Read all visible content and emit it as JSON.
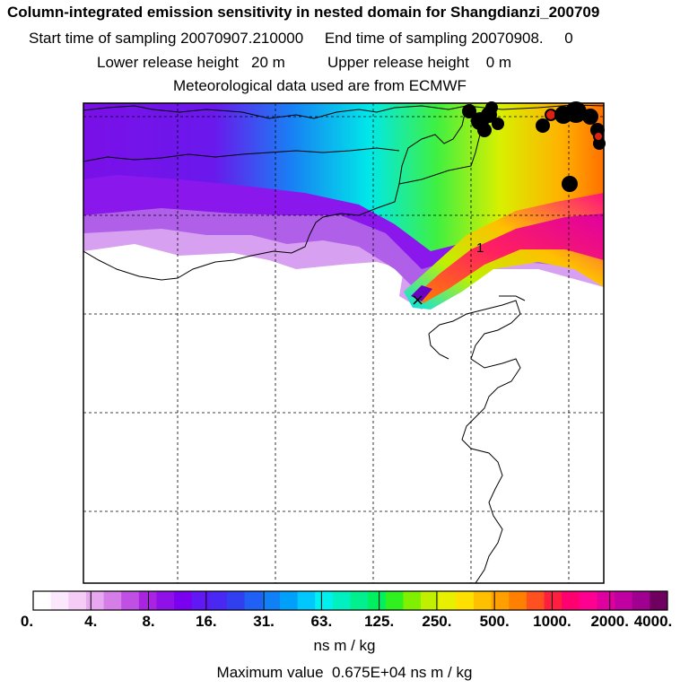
{
  "header": {
    "title": "Column-integrated emission sensitivity in nested domain for Shangdianzi_200709",
    "sampling": "Start time of sampling 20070907.210000     End time of sampling 20070908.     0",
    "heights": "Lower release height   20 m          Upper release height    0 m",
    "met": "Meteorological data used are from ECMWF"
  },
  "chart_data": {
    "type": "heatmap",
    "title": "Column-integrated emission sensitivity in nested domain for Shangdianzi_200709",
    "legend_ticks": [
      "0.",
      "4.",
      "8.",
      "16.",
      "31.",
      "63.",
      "125.",
      "250.",
      "500.",
      "1000.",
      "2000.",
      "4000."
    ],
    "legend_colors": [
      "#ffffff",
      "#fce8fc",
      "#f4ccf6",
      "#e8a8f0",
      "#d67ee8",
      "#c050e4",
      "#a824e0",
      "#9010ea",
      "#7a00f0",
      "#6018f4",
      "#4828f2",
      "#3040f0",
      "#2060f4",
      "#1080f6",
      "#00a0fa",
      "#00c8fc",
      "#00f0f0",
      "#00f0c0",
      "#00f090",
      "#00f060",
      "#30f020",
      "#80f000",
      "#c0f000",
      "#e8f000",
      "#ffe000",
      "#ffc000",
      "#ffa000",
      "#ff8000",
      "#ff5020",
      "#ff2040",
      "#ff0070",
      "#ff0090",
      "#e000a0",
      "#c000a0",
      "#a00090",
      "#700060"
    ],
    "units": "ns m / kg",
    "max_label": "Maximum value  0.675E+04 ns m / kg",
    "plume_label": "1",
    "station_marker": "×",
    "grid": true
  }
}
